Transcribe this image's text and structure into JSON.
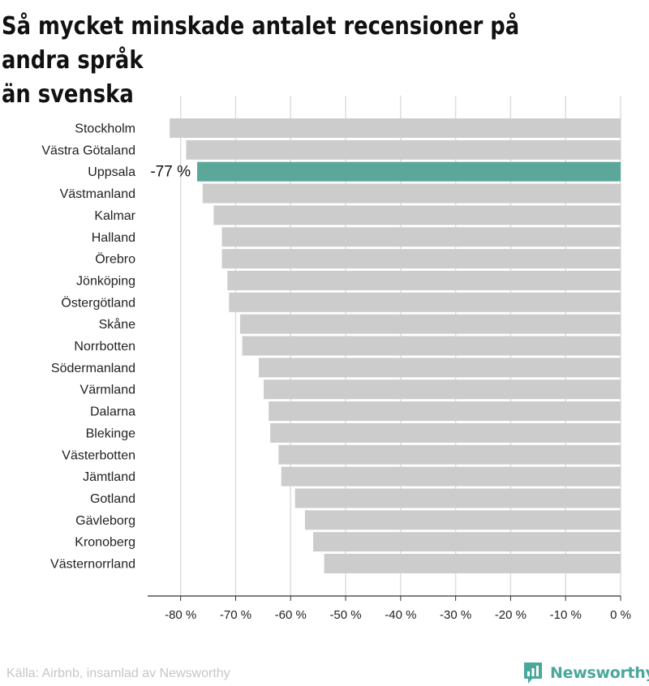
{
  "title_lines": [
    "Så mycket minskade antalet recensioner på andra språk",
    "än svenska"
  ],
  "source": "Källa: Airbnb, insamlad av Newsworthy",
  "brand": {
    "name": "Newsworthy",
    "logo_icon": "newsworthy-logo-icon",
    "color": "#4aa89b"
  },
  "colors": {
    "bar": "#cccccc",
    "highlight": "#5ba89b",
    "grid": "#dddddd",
    "text": "#222222"
  },
  "chart_data": {
    "type": "bar",
    "orientation": "horizontal",
    "title": "Så mycket minskade antalet recensioner på andra språk än svenska",
    "xlim": [
      -86,
      0
    ],
    "x_ticks": [
      -80,
      -70,
      -60,
      -50,
      -40,
      -30,
      -20,
      -10,
      0
    ],
    "x_tick_labels": [
      "-80 %",
      "-70 %",
      "-60 %",
      "-50 %",
      "-40 %",
      "-30 %",
      "-20 %",
      "-10 %",
      "0 %"
    ],
    "grid": true,
    "highlight": {
      "category": "Uppsala",
      "label": "-77 %"
    },
    "categories": [
      "Stockholm",
      "Västra Götaland",
      "Uppsala",
      "Västmanland",
      "Kalmar",
      "Halland",
      "Örebro",
      "Jönköping",
      "Östergötland",
      "Skåne",
      "Norrbotten",
      "Södermanland",
      "Värmland",
      "Dalarna",
      "Blekinge",
      "Västerbotten",
      "Jämtland",
      "Gotland",
      "Gävleborg",
      "Kronoberg",
      "Västernorrland"
    ],
    "values": [
      -82,
      -79,
      -77,
      -76,
      -74,
      -72.5,
      -72.5,
      -71.5,
      -71.2,
      -69.2,
      -68.8,
      -65.8,
      -64.9,
      -64,
      -63.7,
      -62.2,
      -61.7,
      -59.2,
      -57.4,
      -55.9,
      -53.9
    ]
  }
}
